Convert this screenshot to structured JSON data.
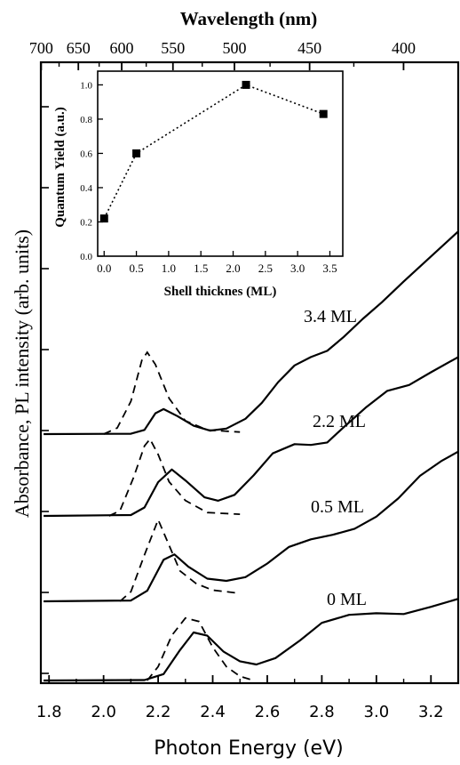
{
  "chart_data": {
    "type": "line",
    "xlabel": "Photon Energy (eV)",
    "x_ticks": [
      "1.8",
      "2.0",
      "2.2",
      "2.4",
      "2.6",
      "2.8",
      "3.0",
      "3.2"
    ],
    "xlim": [
      1.77,
      3.3
    ],
    "top_xlabel": "Wavelength (nm)",
    "top_x_ticks": [
      "700",
      "650",
      "600",
      "550",
      "500",
      "450",
      "400"
    ],
    "ylabel": "Absorbance, PL intensity (arb. units)",
    "curves": [
      {
        "label": "3.4 ML",
        "absorbance": [
          [
            1.78,
            0
          ],
          [
            2.1,
            0.005
          ],
          [
            2.15,
            0.06
          ],
          [
            2.19,
            0.3
          ],
          [
            2.22,
            0.36
          ],
          [
            2.27,
            0.26
          ],
          [
            2.33,
            0.12
          ],
          [
            2.39,
            0.05
          ],
          [
            2.45,
            0.08
          ],
          [
            2.52,
            0.22
          ],
          [
            2.58,
            0.45
          ],
          [
            2.64,
            0.75
          ],
          [
            2.7,
            0.99
          ],
          [
            2.76,
            1.11
          ],
          [
            2.82,
            1.2
          ],
          [
            2.88,
            1.4
          ],
          [
            2.95,
            1.66
          ],
          [
            3.02,
            1.9
          ],
          [
            3.1,
            2.2
          ],
          [
            3.2,
            2.56
          ],
          [
            3.3,
            2.92
          ]
        ],
        "pl": [
          [
            2.0,
            0.0
          ],
          [
            2.05,
            0.06
          ],
          [
            2.1,
            0.32
          ],
          [
            2.14,
            0.72
          ],
          [
            2.16,
            0.8
          ],
          [
            2.19,
            0.68
          ],
          [
            2.24,
            0.35
          ],
          [
            2.3,
            0.13
          ],
          [
            2.38,
            0.04
          ],
          [
            2.5,
            0.02
          ]
        ]
      },
      {
        "label": "2.2 ML",
        "absorbance": [
          [
            1.78,
            0
          ],
          [
            2.1,
            0.01
          ],
          [
            2.15,
            0.1
          ],
          [
            2.2,
            0.4
          ],
          [
            2.25,
            0.55
          ],
          [
            2.3,
            0.42
          ],
          [
            2.37,
            0.22
          ],
          [
            2.42,
            0.18
          ],
          [
            2.48,
            0.25
          ],
          [
            2.55,
            0.48
          ],
          [
            2.62,
            0.74
          ],
          [
            2.7,
            0.85
          ],
          [
            2.76,
            0.84
          ],
          [
            2.82,
            0.87
          ],
          [
            2.88,
            1.05
          ],
          [
            2.96,
            1.28
          ],
          [
            3.04,
            1.48
          ],
          [
            3.12,
            1.55
          ],
          [
            3.2,
            1.7
          ],
          [
            3.3,
            1.88
          ]
        ],
        "pl": [
          [
            2.02,
            0.0
          ],
          [
            2.06,
            0.06
          ],
          [
            2.11,
            0.45
          ],
          [
            2.15,
            0.82
          ],
          [
            2.17,
            0.9
          ],
          [
            2.2,
            0.72
          ],
          [
            2.24,
            0.4
          ],
          [
            2.3,
            0.18
          ],
          [
            2.38,
            0.04
          ],
          [
            2.5,
            0.02
          ]
        ]
      },
      {
        "label": "0.5 ML",
        "absorbance": [
          [
            1.78,
            0
          ],
          [
            2.1,
            0.01
          ],
          [
            2.16,
            0.14
          ],
          [
            2.22,
            0.55
          ],
          [
            2.26,
            0.62
          ],
          [
            2.31,
            0.46
          ],
          [
            2.38,
            0.3
          ],
          [
            2.45,
            0.27
          ],
          [
            2.52,
            0.32
          ],
          [
            2.6,
            0.5
          ],
          [
            2.68,
            0.72
          ],
          [
            2.76,
            0.82
          ],
          [
            2.84,
            0.88
          ],
          [
            2.92,
            0.96
          ],
          [
            3.0,
            1.12
          ],
          [
            3.08,
            1.36
          ],
          [
            3.16,
            1.66
          ],
          [
            3.24,
            1.86
          ],
          [
            3.3,
            1.98
          ]
        ],
        "pl": [
          [
            2.06,
            0.0
          ],
          [
            2.1,
            0.12
          ],
          [
            2.15,
            0.58
          ],
          [
            2.2,
            1.02
          ],
          [
            2.24,
            0.7
          ],
          [
            2.28,
            0.38
          ],
          [
            2.34,
            0.22
          ],
          [
            2.4,
            0.14
          ],
          [
            2.5,
            0.1
          ]
        ]
      },
      {
        "label": "0 ML",
        "absorbance": [
          [
            1.78,
            0
          ],
          [
            2.15,
            0.005
          ],
          [
            2.22,
            0.08
          ],
          [
            2.28,
            0.38
          ],
          [
            2.33,
            0.6
          ],
          [
            2.38,
            0.56
          ],
          [
            2.44,
            0.36
          ],
          [
            2.5,
            0.24
          ],
          [
            2.56,
            0.2
          ],
          [
            2.63,
            0.28
          ],
          [
            2.72,
            0.5
          ],
          [
            2.8,
            0.72
          ],
          [
            2.9,
            0.82
          ],
          [
            3.0,
            0.84
          ],
          [
            3.1,
            0.83
          ],
          [
            3.2,
            0.92
          ],
          [
            3.3,
            1.02
          ]
        ],
        "pl": [
          [
            2.16,
            0.0
          ],
          [
            2.2,
            0.2
          ],
          [
            2.25,
            0.65
          ],
          [
            2.3,
            0.9
          ],
          [
            2.35,
            0.85
          ],
          [
            2.4,
            0.48
          ],
          [
            2.45,
            0.2
          ],
          [
            2.5,
            0.06
          ],
          [
            2.55,
            0.0
          ]
        ]
      }
    ],
    "inset": {
      "type": "scatter",
      "xlabel": "Shell thicknes (ML)",
      "ylabel": "Quantum Yield (a.u.)",
      "x_ticks": [
        "0.0",
        "0.5",
        "1.0",
        "1.5",
        "2.0",
        "2.5",
        "3.0",
        "3.5"
      ],
      "y_ticks": [
        "0.0",
        "0.2",
        "0.4",
        "0.6",
        "0.8",
        "1.0"
      ],
      "xlim": [
        -0.1,
        3.7
      ],
      "ylim": [
        0.0,
        1.08
      ],
      "points": [
        {
          "x": 0.0,
          "y": 0.22
        },
        {
          "x": 0.5,
          "y": 0.6
        },
        {
          "x": 2.2,
          "y": 1.0
        },
        {
          "x": 3.4,
          "y": 0.83
        }
      ]
    }
  }
}
